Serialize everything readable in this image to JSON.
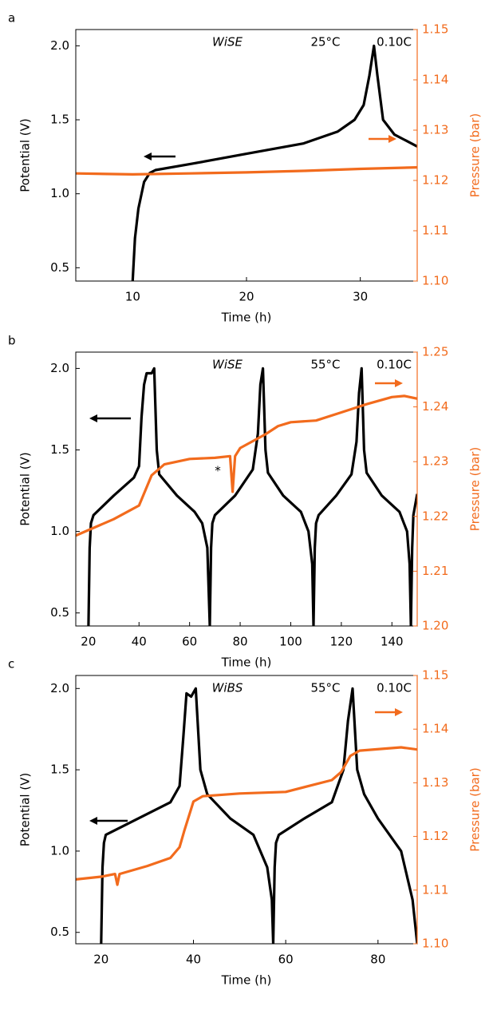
{
  "chart_data": [
    {
      "type": "line",
      "label": "a",
      "electrolyte": "WiSE",
      "temperature": "25°C",
      "rate": "0.10C",
      "x_label": "Time (h)",
      "y_label": "Potential (V)",
      "y2_label": "Pressure (bar)",
      "xlim": [
        5,
        35
      ],
      "xticks": [
        10,
        20,
        30
      ],
      "ylim": [
        0.41,
        2.11
      ],
      "yticks": [
        0.5,
        {
          "value": 1,
          "label": "1.0"
        },
        1.5,
        {
          "value": 2,
          "label": "2.0"
        }
      ],
      "y2lim": [
        1.1,
        1.15
      ],
      "y2ticks": [
        {
          "value": 1.1,
          "label": "1.10"
        },
        1.11,
        1.12,
        1.13,
        1.14,
        1.15
      ],
      "series": [
        {
          "name": "Potential",
          "color": "#000000",
          "x": [
            10,
            10.2,
            10.5,
            11,
            11.5,
            12,
            15,
            20,
            25,
            28,
            29.5,
            30.3,
            30.8,
            31.2,
            31.5,
            32,
            33,
            35
          ],
          "values": [
            0.41,
            0.7,
            0.9,
            1.08,
            1.14,
            1.16,
            1.2,
            1.27,
            1.34,
            1.42,
            1.5,
            1.6,
            1.8,
            2.0,
            1.8,
            1.5,
            1.4,
            1.32
          ]
        },
        {
          "name": "Pressure",
          "color": "#f26b1d",
          "axis": "y2",
          "x": [
            5,
            10,
            15,
            20,
            25,
            30,
            35
          ],
          "values": [
            1.1214,
            1.1212,
            1.1214,
            1.1216,
            1.1219,
            1.1223,
            1.1226
          ]
        }
      ]
    },
    {
      "type": "line",
      "label": "b",
      "electrolyte": "WiSE",
      "temperature": "55°C",
      "rate": "0.10C",
      "annotation": "*",
      "x_label": "Time (h)",
      "y_label": "Potential (V)",
      "y2_label": "Pressure (bar)",
      "xlim": [
        15,
        150
      ],
      "xticks": [
        20,
        40,
        60,
        80,
        100,
        120,
        140
      ],
      "ylim": [
        0.42,
        2.1
      ],
      "yticks": [
        0.5,
        {
          "value": 1,
          "label": "1.0"
        },
        1.5,
        {
          "value": 2,
          "label": "2.0"
        }
      ],
      "y2lim": [
        1.2,
        1.25
      ],
      "y2ticks": [
        {
          "value": 1.2,
          "label": "1.20"
        },
        1.21,
        1.22,
        1.23,
        1.24,
        1.25
      ],
      "series": [
        {
          "name": "Potential",
          "color": "#000000",
          "x": [
            20,
            20.5,
            21,
            22,
            30,
            38,
            40,
            41,
            42,
            43,
            45,
            46,
            47,
            48,
            55,
            62,
            65,
            67,
            68,
            68.5,
            69,
            70,
            78,
            85,
            87,
            88,
            89,
            90,
            91,
            97,
            104,
            107,
            108.5,
            109,
            109.5,
            110,
            111,
            118,
            124,
            126,
            127,
            128,
            129,
            130,
            136,
            143,
            146,
            147,
            147.5,
            148,
            148.5,
            150
          ],
          "values": [
            0.42,
            0.9,
            1.05,
            1.1,
            1.22,
            1.33,
            1.4,
            1.7,
            1.9,
            1.97,
            1.97,
            2.0,
            1.5,
            1.35,
            1.22,
            1.12,
            1.05,
            0.9,
            0.42,
            0.9,
            1.05,
            1.1,
            1.22,
            1.38,
            1.6,
            1.9,
            2.0,
            1.5,
            1.36,
            1.22,
            1.12,
            1.0,
            0.8,
            0.42,
            0.9,
            1.05,
            1.1,
            1.22,
            1.35,
            1.55,
            1.85,
            2.0,
            1.5,
            1.36,
            1.22,
            1.12,
            1.0,
            0.8,
            0.42,
            0.9,
            1.1,
            1.23
          ]
        },
        {
          "name": "Pressure",
          "color": "#f26b1d",
          "axis": "y2",
          "x": [
            15,
            20,
            30,
            40,
            45,
            50,
            60,
            70,
            76,
            77,
            78,
            80,
            90,
            95,
            100,
            110,
            120,
            130,
            140,
            145,
            150
          ],
          "values": [
            1.2165,
            1.2175,
            1.2195,
            1.222,
            1.2275,
            1.2295,
            1.2305,
            1.2307,
            1.231,
            1.2245,
            1.231,
            1.2325,
            1.235,
            1.2365,
            1.2372,
            1.2375,
            1.239,
            1.2405,
            1.2418,
            1.242,
            1.2415
          ]
        }
      ]
    },
    {
      "type": "line",
      "label": "c",
      "electrolyte": "WiBS",
      "temperature": "55°C",
      "rate": "0.10C",
      "x_label": "Time (h)",
      "y_label": "Potential (V)",
      "y2_label": "Pressure (bar)",
      "xlim": [
        14.5,
        88.5
      ],
      "xticks": [
        20,
        40,
        60,
        80
      ],
      "ylim": [
        0.43,
        2.08
      ],
      "yticks": [
        0.5,
        {
          "value": 1,
          "label": "1.0"
        },
        1.5,
        {
          "value": 2,
          "label": "2.0"
        }
      ],
      "y2lim": [
        1.1,
        1.15
      ],
      "y2ticks": [
        {
          "value": 1.1,
          "label": "1.10"
        },
        1.11,
        1.12,
        1.13,
        1.14,
        1.15
      ],
      "series": [
        {
          "name": "Potential",
          "color": "#000000",
          "x": [
            20,
            20.3,
            20.6,
            21,
            28,
            35,
            37,
            37.8,
            38.5,
            39.5,
            40.5,
            41.5,
            43,
            48,
            53,
            56,
            57,
            57.3,
            57.6,
            57.9,
            58.5,
            64,
            70,
            72.5,
            73.5,
            74.5,
            75.5,
            77,
            80,
            85,
            87.5,
            88.5
          ],
          "values": [
            0.43,
            0.9,
            1.05,
            1.1,
            1.2,
            1.3,
            1.4,
            1.7,
            1.97,
            1.95,
            2.0,
            1.5,
            1.35,
            1.2,
            1.1,
            0.9,
            0.7,
            0.43,
            0.9,
            1.05,
            1.1,
            1.2,
            1.3,
            1.5,
            1.8,
            2.0,
            1.5,
            1.35,
            1.2,
            1.0,
            0.7,
            0.43
          ]
        },
        {
          "name": "Pressure",
          "color": "#f26b1d",
          "axis": "y2",
          "x": [
            14.5,
            20,
            23,
            23.5,
            24,
            30,
            35,
            37,
            38,
            40,
            42,
            50,
            60,
            70,
            72,
            74,
            76,
            85,
            88.5
          ],
          "values": [
            1.112,
            1.1125,
            1.113,
            1.111,
            1.113,
            1.1145,
            1.116,
            1.118,
            1.121,
            1.1265,
            1.1275,
            1.128,
            1.1283,
            1.1305,
            1.132,
            1.135,
            1.136,
            1.1366,
            1.1362
          ]
        }
      ]
    }
  ]
}
